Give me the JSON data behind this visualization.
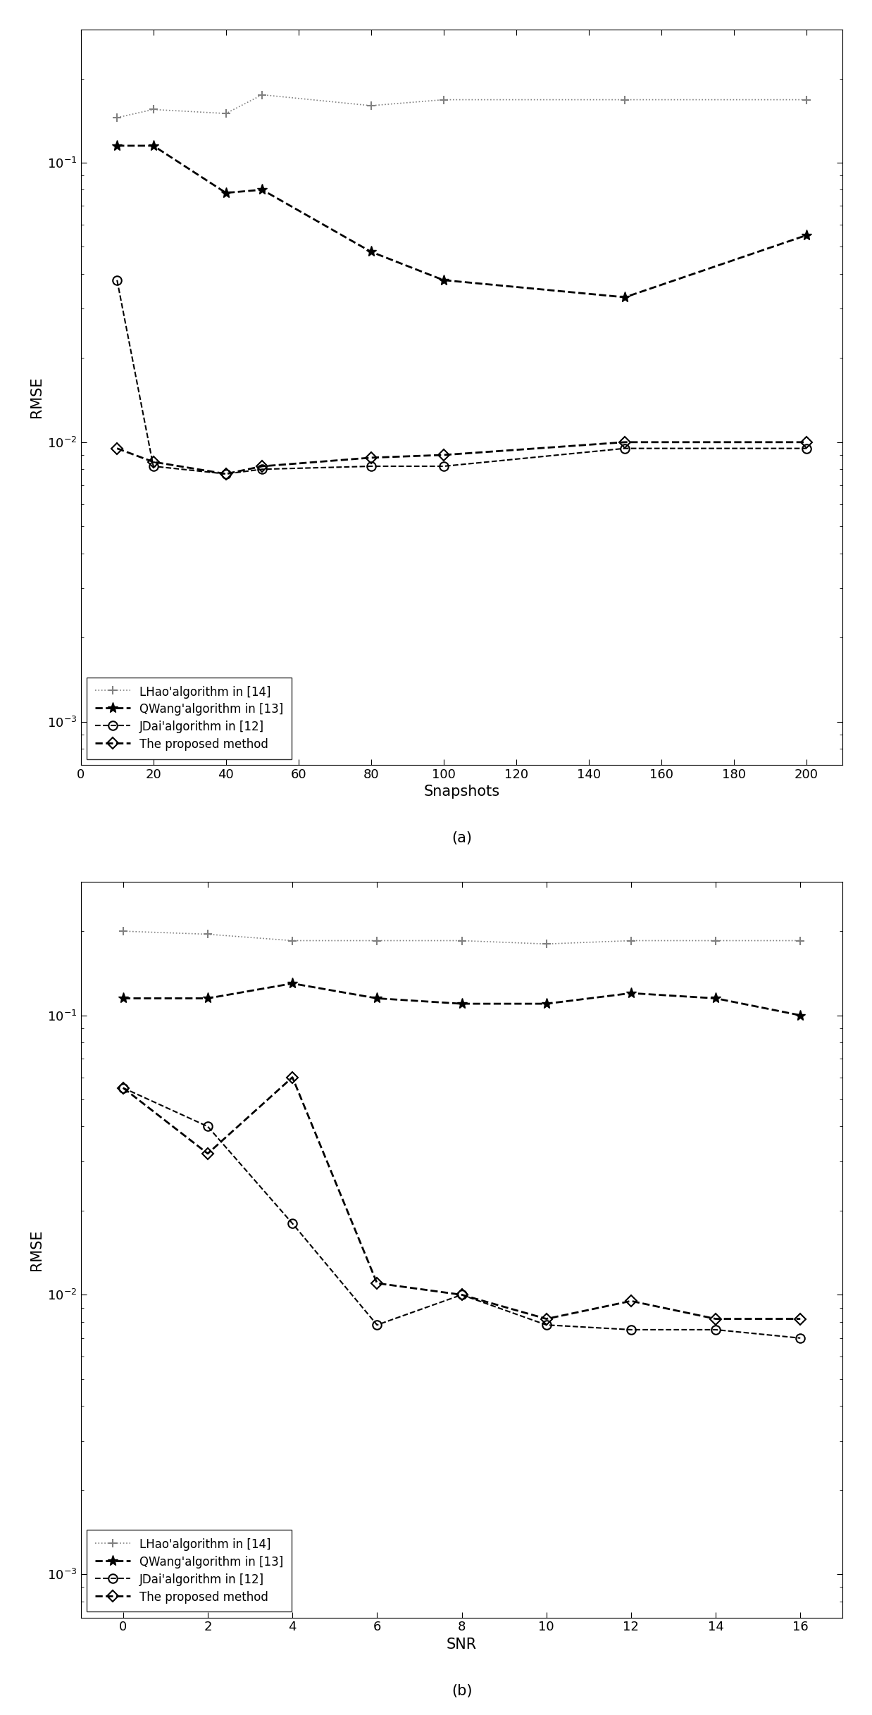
{
  "plot_a": {
    "x": [
      10,
      20,
      40,
      50,
      80,
      100,
      150,
      200
    ],
    "proposed": [
      0.0095,
      0.0085,
      0.0077,
      0.0082,
      0.0088,
      0.009,
      0.01,
      0.01
    ],
    "jdai": [
      0.038,
      0.0082,
      0.0077,
      0.008,
      0.0082,
      0.0082,
      0.0095,
      0.0095
    ],
    "qwang": [
      0.115,
      0.115,
      0.078,
      0.08,
      0.048,
      0.038,
      0.033,
      0.055
    ],
    "lhao": [
      0.145,
      0.155,
      0.15,
      0.175,
      0.16,
      0.168,
      0.168,
      0.168
    ],
    "xlabel": "Snapshots",
    "ylabel": "RMSE",
    "label": "(a)",
    "xlim": [
      0,
      210
    ],
    "xticks": [
      0,
      20,
      40,
      60,
      80,
      100,
      120,
      140,
      160,
      180,
      200
    ],
    "ylim": [
      0.0007,
      0.3
    ],
    "yticks": [
      0.001,
      0.01,
      0.1
    ]
  },
  "plot_b": {
    "x": [
      0,
      2,
      4,
      6,
      8,
      10,
      12,
      14,
      16
    ],
    "proposed": [
      0.055,
      0.032,
      0.06,
      0.011,
      0.01,
      0.0082,
      0.0095,
      0.0082,
      0.0082
    ],
    "jdai": [
      0.055,
      0.04,
      0.018,
      0.0078,
      0.01,
      0.0078,
      0.0075,
      0.0075,
      0.007
    ],
    "qwang": [
      0.115,
      0.115,
      0.13,
      0.115,
      0.11,
      0.11,
      0.12,
      0.115,
      0.1
    ],
    "lhao": [
      0.2,
      0.195,
      0.185,
      0.185,
      0.185,
      0.18,
      0.185,
      0.185,
      0.185
    ],
    "xlabel": "SNR",
    "ylabel": "RMSE",
    "label": "(b)",
    "xlim": [
      -1,
      17
    ],
    "xticks": [
      0,
      2,
      4,
      6,
      8,
      10,
      12,
      14,
      16
    ],
    "ylim": [
      0.0007,
      0.3
    ],
    "yticks": [
      0.001,
      0.01,
      0.1
    ]
  },
  "legend_labels": [
    "The proposed method",
    "JDai'algorithm in [12]",
    "QWang'algorithm in [13]",
    "LHao'algorithm in [14]"
  ],
  "background_color": "#ffffff"
}
